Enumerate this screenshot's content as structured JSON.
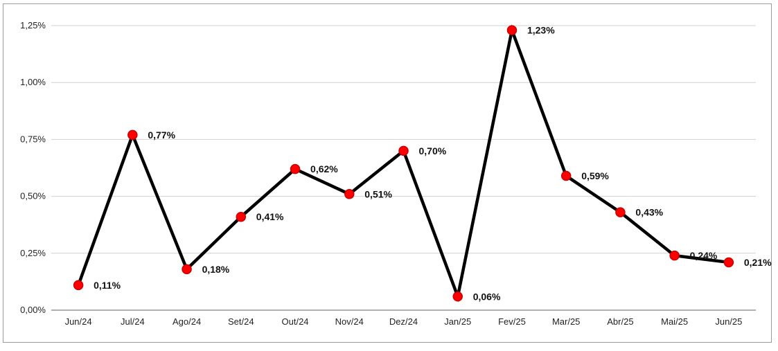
{
  "chart_data": {
    "type": "line",
    "title": "",
    "xlabel": "",
    "ylabel": "",
    "categories": [
      "Jun/24",
      "Jul/24",
      "Ago/24",
      "Set/24",
      "Out/24",
      "Nov/24",
      "Dez/24",
      "Jan/25",
      "Fev/25",
      "Mar/25",
      "Abr/25",
      "Mai/25",
      "Jun/25"
    ],
    "series": [
      {
        "values": [
          0.11,
          0.77,
          0.18,
          0.41,
          0.62,
          0.51,
          0.7,
          0.06,
          1.23,
          0.59,
          0.43,
          0.24,
          0.21
        ],
        "labels": [
          "0,11%",
          "0,77%",
          "0,18%",
          "0,41%",
          "0,62%",
          "0,51%",
          "0,70%",
          "0,06%",
          "1,23%",
          "0,59%",
          "0,43%",
          "0,24%",
          "0,21%"
        ]
      }
    ],
    "ylim": [
      0,
      1.25
    ],
    "yticks": [
      0,
      0.25,
      0.5,
      0.75,
      1.0,
      1.25
    ],
    "ytick_labels": [
      "0,00%",
      "0,25%",
      "0,50%",
      "0,75%",
      "1,00%",
      "1,25%"
    ],
    "grid": true,
    "legend": "none",
    "colors": {
      "line": "#000000",
      "marker": "#ff0000",
      "marker_edge": "#cc0000",
      "grid": "#d0d0d0",
      "axis": "#7f7f7f"
    }
  }
}
